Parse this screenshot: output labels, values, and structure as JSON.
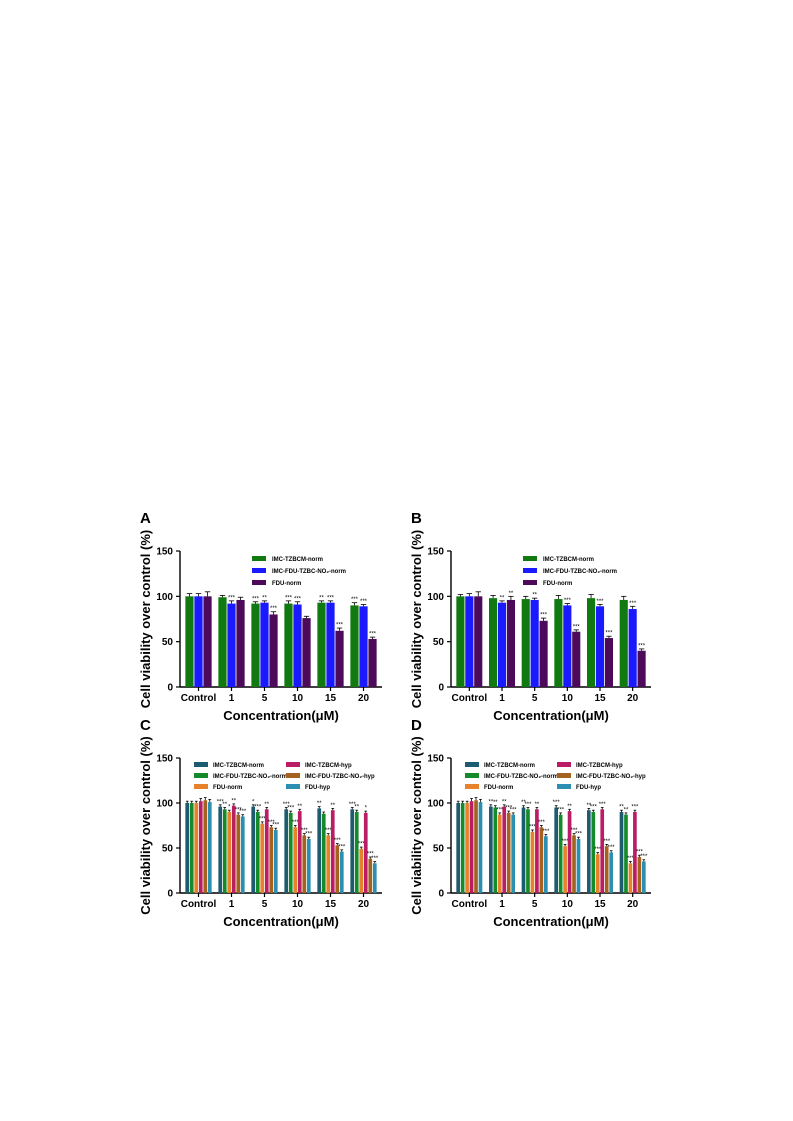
{
  "chart_data": [
    {
      "panel": "A",
      "type": "bar",
      "xlabel": "Concentration(μM)",
      "ylabel": "Cell viability over control (%)",
      "ylim": [
        0,
        150
      ],
      "yticks": [
        0,
        50,
        100,
        150
      ],
      "categories": [
        "Control",
        "1",
        "5",
        "10",
        "15",
        "20"
      ],
      "legend_columns": 1,
      "series": [
        {
          "name": "IMC-TZBCM-norm",
          "color": "#107a10",
          "values": [
            100,
            99,
            92,
            92,
            93,
            90
          ],
          "errors": [
            3,
            2,
            2,
            3,
            2,
            3
          ],
          "sig": [
            "",
            "",
            "***",
            "***",
            "**",
            "***"
          ]
        },
        {
          "name": "IMC-FDU-TZBC-NO₂-norm",
          "color": "#1a1aff",
          "values": [
            100,
            92,
            93,
            91,
            93,
            89
          ],
          "errors": [
            3,
            3,
            2,
            3,
            2,
            2
          ],
          "sig": [
            "",
            "***",
            "**",
            "***",
            "***",
            "***"
          ]
        },
        {
          "name": "FDU-norm",
          "color": "#4d0a5a",
          "values": [
            100,
            96,
            80,
            76,
            62,
            53
          ],
          "errors": [
            5,
            3,
            3,
            2,
            3,
            2
          ],
          "sig": [
            "",
            "",
            "***",
            "",
            "***",
            "***"
          ]
        }
      ]
    },
    {
      "panel": "B",
      "type": "bar",
      "xlabel": "Concentration(μM)",
      "ylabel": "Cell viability over control (%)",
      "ylim": [
        0,
        150
      ],
      "yticks": [
        0,
        50,
        100,
        150
      ],
      "categories": [
        "Control",
        "1",
        "5",
        "10",
        "15",
        "20"
      ],
      "legend_columns": 1,
      "series": [
        {
          "name": "IMC-TZBCM-norm",
          "color": "#107a10",
          "values": [
            100,
            98,
            97,
            97,
            98,
            96
          ],
          "errors": [
            2,
            3,
            3,
            4,
            4,
            4
          ],
          "sig": [
            "",
            "",
            "",
            "",
            "",
            ""
          ]
        },
        {
          "name": "IMC-FDU-TZBC-NO₂-norm",
          "color": "#1a1aff",
          "values": [
            100,
            93,
            96,
            90,
            89,
            86
          ],
          "errors": [
            3,
            2,
            2,
            2,
            2,
            3
          ],
          "sig": [
            "",
            "**",
            "**",
            "***",
            "***",
            "***"
          ]
        },
        {
          "name": "FDU-norm",
          "color": "#4d0a5a",
          "values": [
            100,
            96,
            73,
            61,
            54,
            40
          ],
          "errors": [
            5,
            4,
            3,
            2,
            2,
            2
          ],
          "sig": [
            "",
            "**",
            "***",
            "***",
            "***",
            "***"
          ]
        }
      ]
    },
    {
      "panel": "C",
      "type": "bar",
      "xlabel": "Concentration(μM)",
      "ylabel": "Cell viability over control (%)",
      "ylim": [
        0,
        150
      ],
      "yticks": [
        0,
        50,
        100,
        150
      ],
      "categories": [
        "Control",
        "1",
        "5",
        "10",
        "15",
        "20"
      ],
      "legend_columns": 2,
      "series": [
        {
          "name": "IMC-TZBCM-norm",
          "color": "#1d5c6e",
          "values": [
            100,
            96,
            96,
            93,
            94,
            93
          ],
          "errors": [
            2,
            2,
            2,
            2,
            2,
            2
          ],
          "sig": [
            "",
            "***",
            "*",
            "***",
            "**",
            "***"
          ]
        },
        {
          "name": "IMC-FDU-TZBC-NO₂-norm",
          "color": "#158a2a",
          "values": [
            100,
            93,
            90,
            89,
            88,
            90
          ],
          "errors": [
            2,
            2,
            2,
            2,
            2,
            2
          ],
          "sig": [
            "",
            "**",
            "***",
            "***",
            "",
            "**"
          ]
        },
        {
          "name": "FDU-norm",
          "color": "#e8822a",
          "values": [
            100,
            90,
            77,
            73,
            64,
            49
          ],
          "errors": [
            2,
            2,
            2,
            2,
            2,
            2
          ],
          "sig": [
            "",
            "*",
            "***",
            "***",
            "***",
            "***"
          ]
        },
        {
          "name": "IMC-TZBCM-hyp",
          "color": "#bb1d64",
          "values": [
            102,
            97,
            93,
            91,
            92,
            89
          ],
          "errors": [
            3,
            2,
            2,
            2,
            2,
            2
          ],
          "sig": [
            "",
            "**",
            "**",
            "**",
            "**",
            "*"
          ]
        },
        {
          "name": "IMC-FDU-TZBC-NO₂-hyp",
          "color": "#a5621e",
          "values": [
            103,
            87,
            73,
            64,
            53,
            38
          ],
          "errors": [
            3,
            2,
            2,
            2,
            2,
            2
          ],
          "sig": [
            "",
            "***",
            "***",
            "***",
            "***",
            "***"
          ]
        },
        {
          "name": "FDU-hyp",
          "color": "#2a8fb0",
          "values": [
            101,
            85,
            70,
            60,
            46,
            33
          ],
          "errors": [
            3,
            2,
            2,
            2,
            2,
            2
          ],
          "sig": [
            "",
            "***",
            "***",
            "***",
            "***",
            "***"
          ]
        }
      ]
    },
    {
      "panel": "D",
      "type": "bar",
      "xlabel": "Concentration(μM)",
      "ylabel": "Cell viability over control (%)",
      "ylim": [
        0,
        150
      ],
      "yticks": [
        0,
        50,
        100,
        150
      ],
      "categories": [
        "Control",
        "1",
        "5",
        "10",
        "15",
        "20"
      ],
      "legend_columns": 2,
      "series": [
        {
          "name": "IMC-TZBCM-norm",
          "color": "#1d5c6e",
          "values": [
            100,
            96,
            95,
            95,
            92,
            90
          ],
          "errors": [
            2,
            2,
            2,
            2,
            2,
            2
          ],
          "sig": [
            "",
            "**",
            "**",
            "***",
            "**",
            "**"
          ]
        },
        {
          "name": "IMC-FDU-TZBC-NO₂-norm",
          "color": "#158a2a",
          "values": [
            100,
            95,
            93,
            87,
            90,
            87
          ],
          "errors": [
            2,
            2,
            2,
            2,
            2,
            2
          ],
          "sig": [
            "",
            "**",
            "***",
            "***",
            "***",
            "**"
          ]
        },
        {
          "name": "FDU-norm",
          "color": "#e8822a",
          "values": [
            100,
            87,
            68,
            52,
            43,
            33
          ],
          "errors": [
            2,
            2,
            2,
            2,
            2,
            2
          ],
          "sig": [
            "",
            "***",
            "***",
            "***",
            "***",
            "***"
          ]
        },
        {
          "name": "IMC-TZBCM-hyp",
          "color": "#bb1d64",
          "values": [
            102,
            96,
            93,
            91,
            93,
            90
          ],
          "errors": [
            3,
            2,
            2,
            2,
            2,
            2
          ],
          "sig": [
            "",
            "**",
            "**",
            "**",
            "***",
            "***"
          ]
        },
        {
          "name": "IMC-FDU-TZBC-NO₂-hyp",
          "color": "#a5621e",
          "values": [
            103,
            89,
            73,
            64,
            52,
            40
          ],
          "errors": [
            3,
            2,
            2,
            2,
            2,
            2
          ],
          "sig": [
            "",
            "***",
            "***",
            "***",
            "***",
            "***"
          ]
        },
        {
          "name": "FDU-hyp",
          "color": "#2a8fb0",
          "values": [
            101,
            87,
            63,
            60,
            45,
            35
          ],
          "errors": [
            3,
            2,
            2,
            2,
            2,
            2
          ],
          "sig": [
            "",
            "***",
            "***",
            "***",
            "***",
            "***"
          ]
        }
      ]
    }
  ]
}
